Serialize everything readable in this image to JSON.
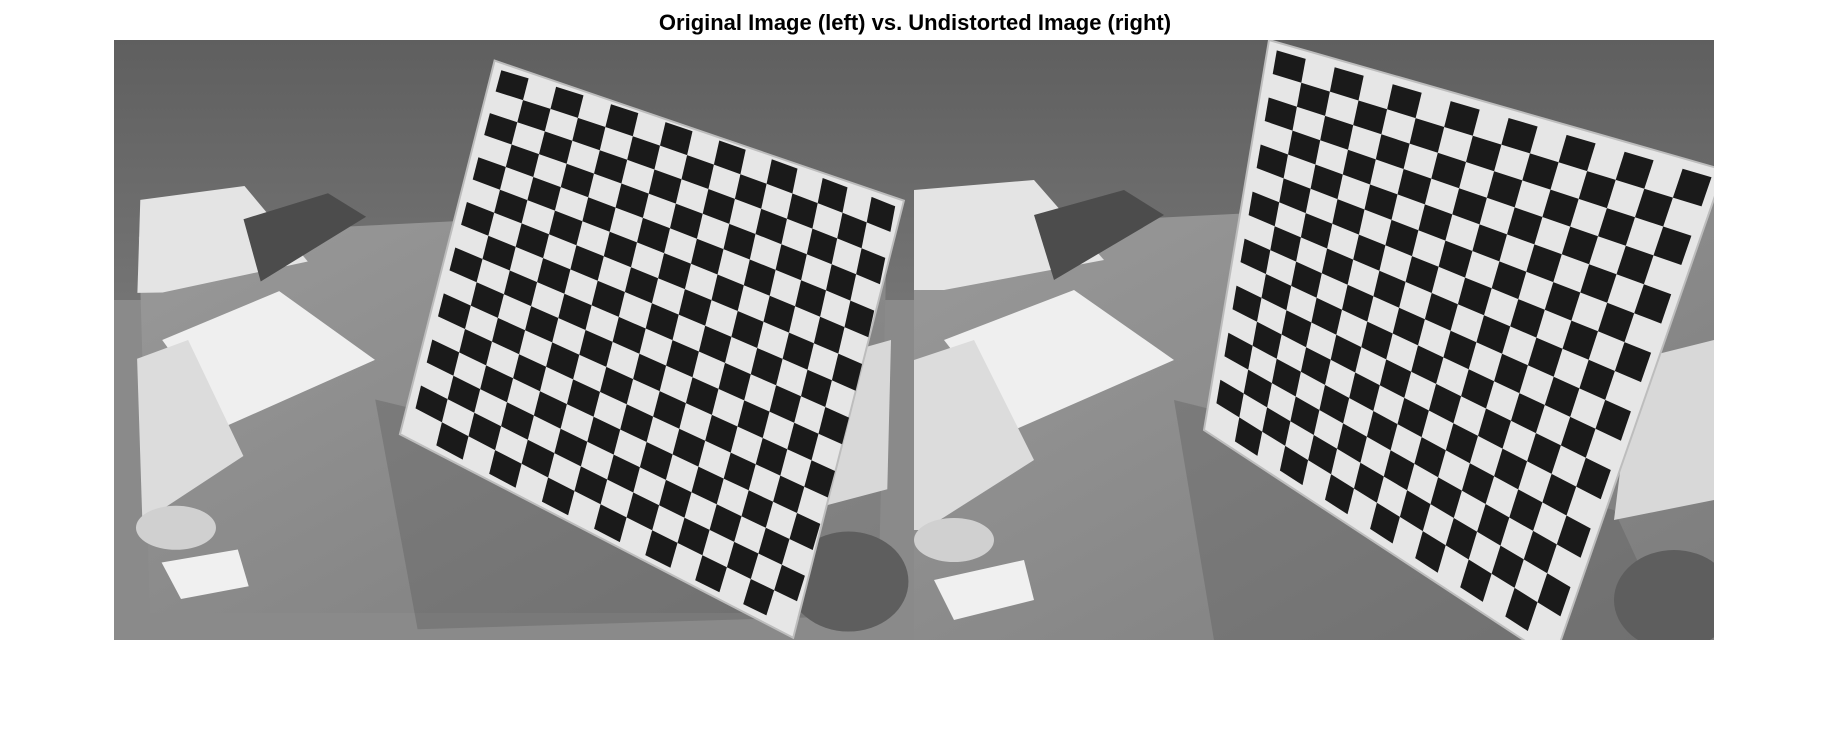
{
  "figure": {
    "title": "Original Image (left) vs. Undistorted Image (right)"
  },
  "panels": [
    {
      "id": "original",
      "description_name": "original-image",
      "warp": "barrel"
    },
    {
      "id": "undistorted",
      "description_name": "undistorted-image",
      "warp": "none"
    }
  ],
  "checkerboard": {
    "rows": 16,
    "cols": 15,
    "dark_color": "#1a1a1a",
    "light_color": "#e6e6e6"
  },
  "colors": {
    "wall": "#6a6a6a",
    "desk": "#8e8e8e",
    "paper": "#e4e4e4",
    "shadow": "#5a5a5a"
  }
}
